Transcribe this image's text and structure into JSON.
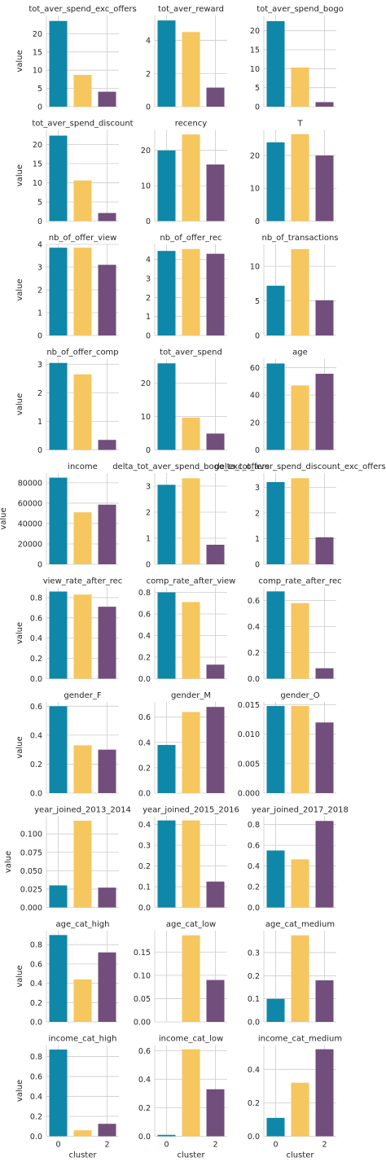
{
  "chart_data": {
    "type": "bar",
    "categories": [
      "0",
      "1",
      "2"
    ],
    "colors": [
      "#0f87a8",
      "#f6c65f",
      "#714e7c"
    ],
    "xlabel": "cluster",
    "ylabel": "value",
    "grid": true,
    "xticks": [
      "0",
      "2"
    ],
    "panels": [
      {
        "title": "tot_aver_spend_exc_offers",
        "values": [
          23.5,
          8.7,
          4.1
        ],
        "yticks": [
          "0",
          "5",
          "10",
          "15",
          "20"
        ],
        "ylim": [
          0,
          25
        ]
      },
      {
        "title": "tot_aver_reward",
        "values": [
          5.2,
          4.5,
          1.15
        ],
        "yticks": [
          "0",
          "2",
          "4"
        ],
        "ylim": [
          0,
          5.5
        ]
      },
      {
        "title": "tot_aver_spend_bogo",
        "values": [
          22.5,
          10.3,
          1.2
        ],
        "yticks": [
          "0",
          "5",
          "10",
          "15",
          "20"
        ],
        "ylim": [
          0,
          24
        ]
      },
      {
        "title": "tot_aver_spend_discount",
        "values": [
          22.3,
          10.6,
          2.1
        ],
        "yticks": [
          "0",
          "5",
          "10",
          "15",
          "20"
        ],
        "ylim": [
          0,
          23.8
        ]
      },
      {
        "title": "recency",
        "values": [
          20.0,
          24.5,
          16.0
        ],
        "yticks": [
          "0",
          "10",
          "20"
        ],
        "ylim": [
          0,
          25.8
        ]
      },
      {
        "title": "T",
        "values": [
          24.0,
          26.5,
          20.0
        ],
        "yticks": [
          "0",
          "10",
          "20"
        ],
        "ylim": [
          0,
          27.8
        ]
      },
      {
        "title": "nb_of_offer_view",
        "values": [
          3.85,
          3.85,
          3.1
        ],
        "yticks": [
          "0",
          "1",
          "2",
          "3",
          "4"
        ],
        "ylim": [
          0,
          4
        ]
      },
      {
        "title": "nb_of_offer_rec",
        "values": [
          4.45,
          4.55,
          4.3
        ],
        "yticks": [
          "0",
          "1",
          "2",
          "3",
          "4"
        ],
        "ylim": [
          0,
          4.8
        ]
      },
      {
        "title": "nb_of_transactions",
        "values": [
          7.2,
          12.5,
          5.1
        ],
        "yticks": [
          "0",
          "5",
          "10"
        ],
        "ylim": [
          0,
          13.2
        ]
      },
      {
        "title": "nb_of_offer_comp",
        "values": [
          3.05,
          2.65,
          0.35
        ],
        "yticks": [
          "0",
          "1",
          "2",
          "3"
        ],
        "ylim": [
          0,
          3.2
        ]
      },
      {
        "title": "tot_aver_spend",
        "values": [
          26.0,
          9.7,
          4.9
        ],
        "yticks": [
          "0",
          "10",
          "20"
        ],
        "ylim": [
          0,
          27.4
        ]
      },
      {
        "title": "age",
        "values": [
          63.0,
          47.0,
          55.5
        ],
        "yticks": [
          "0",
          "20",
          "40",
          "60"
        ],
        "ylim": [
          0,
          66.5
        ]
      },
      {
        "title": "income",
        "values": [
          85000,
          51000,
          58500
        ],
        "yticks": [
          "0",
          "20000",
          "40000",
          "60000",
          "80000"
        ],
        "ylim": [
          0,
          89500
        ]
      },
      {
        "title": "delta_tot_aver_spend_bogo_exc_offers",
        "values": [
          3.05,
          3.3,
          0.75
        ],
        "yticks": [
          "0",
          "1",
          "2",
          "3"
        ],
        "ylim": [
          0,
          3.5
        ]
      },
      {
        "title": "delta_tot_aver_spend_discount_exc_offers",
        "values": [
          3.2,
          3.35,
          1.05
        ],
        "yticks": [
          "0",
          "1",
          "2",
          "3"
        ],
        "ylim": [
          0,
          3.55
        ]
      },
      {
        "title": "view_rate_after_rec",
        "values": [
          0.86,
          0.83,
          0.71
        ],
        "yticks": [
          "0.0",
          "0.2",
          "0.4",
          "0.6",
          "0.8"
        ],
        "ylim": [
          0,
          0.9
        ]
      },
      {
        "title": "comp_rate_after_view",
        "values": [
          0.8,
          0.71,
          0.13
        ],
        "yticks": [
          "0.0",
          "0.2",
          "0.4",
          "0.6",
          "0.8"
        ],
        "ylim": [
          0,
          0.845
        ]
      },
      {
        "title": "comp_rate_after_rec",
        "values": [
          0.67,
          0.58,
          0.08
        ],
        "yticks": [
          "0.0",
          "0.2",
          "0.4",
          "0.6"
        ],
        "ylim": [
          0,
          0.7
        ]
      },
      {
        "title": "gender_F",
        "values": [
          0.6,
          0.33,
          0.3
        ],
        "yticks": [
          "0.0",
          "0.2",
          "0.4",
          "0.6"
        ],
        "ylim": [
          0,
          0.63
        ]
      },
      {
        "title": "gender_M",
        "values": [
          0.38,
          0.64,
          0.68
        ],
        "yticks": [
          "0.0",
          "0.2",
          "0.4",
          "0.6"
        ],
        "ylim": [
          0,
          0.72
        ]
      },
      {
        "title": "gender_O",
        "values": [
          0.0148,
          0.0148,
          0.012
        ],
        "yticks": [
          "0.000",
          "0.005",
          "0.010",
          "0.015"
        ],
        "ylim": [
          0,
          0.0155
        ]
      },
      {
        "title": "year_joined_2013_2014",
        "values": [
          0.03,
          0.118,
          0.027
        ],
        "yticks": [
          "0.000",
          "0.025",
          "0.050",
          "0.075",
          "0.100"
        ],
        "ylim": [
          0,
          0.124
        ]
      },
      {
        "title": "year_joined_2015_2016",
        "values": [
          0.42,
          0.42,
          0.125
        ],
        "yticks": [
          "0.0",
          "0.1",
          "0.2",
          "0.3",
          "0.4"
        ],
        "ylim": [
          0,
          0.44
        ]
      },
      {
        "title": "year_joined_2017_2018",
        "values": [
          0.55,
          0.465,
          0.835
        ],
        "yticks": [
          "0.0",
          "0.2",
          "0.4",
          "0.6",
          "0.8"
        ],
        "ylim": [
          0,
          0.88
        ]
      },
      {
        "title": "age_cat_high",
        "values": [
          0.9,
          0.44,
          0.72
        ],
        "yticks": [
          "0.0",
          "0.2",
          "0.4",
          "0.6",
          "0.8"
        ],
        "ylim": [
          0,
          0.945
        ]
      },
      {
        "title": "age_cat_low",
        "values": [
          0.0,
          0.186,
          0.09
        ],
        "yticks": [
          "0.00",
          "0.05",
          "0.10",
          "0.15"
        ],
        "ylim": [
          0,
          0.196
        ]
      },
      {
        "title": "age_cat_medium",
        "values": [
          0.1,
          0.375,
          0.18
        ],
        "yticks": [
          "0.0",
          "0.1",
          "0.2",
          "0.3"
        ],
        "ylim": [
          0,
          0.395
        ]
      },
      {
        "title": "income_cat_high",
        "values": [
          0.87,
          0.06,
          0.125
        ],
        "yticks": [
          "0.0",
          "0.2",
          "0.4",
          "0.6",
          "0.8"
        ],
        "ylim": [
          0,
          0.915
        ]
      },
      {
        "title": "income_cat_low",
        "values": [
          0.01,
          0.61,
          0.33
        ],
        "yticks": [
          "0.0",
          "0.2",
          "0.4",
          "0.6"
        ],
        "ylim": [
          0,
          0.64
        ]
      },
      {
        "title": "income_cat_medium",
        "values": [
          0.11,
          0.32,
          0.52
        ],
        "yticks": [
          "0.0",
          "0.2",
          "0.4"
        ],
        "ylim": [
          0,
          0.545
        ]
      }
    ]
  }
}
